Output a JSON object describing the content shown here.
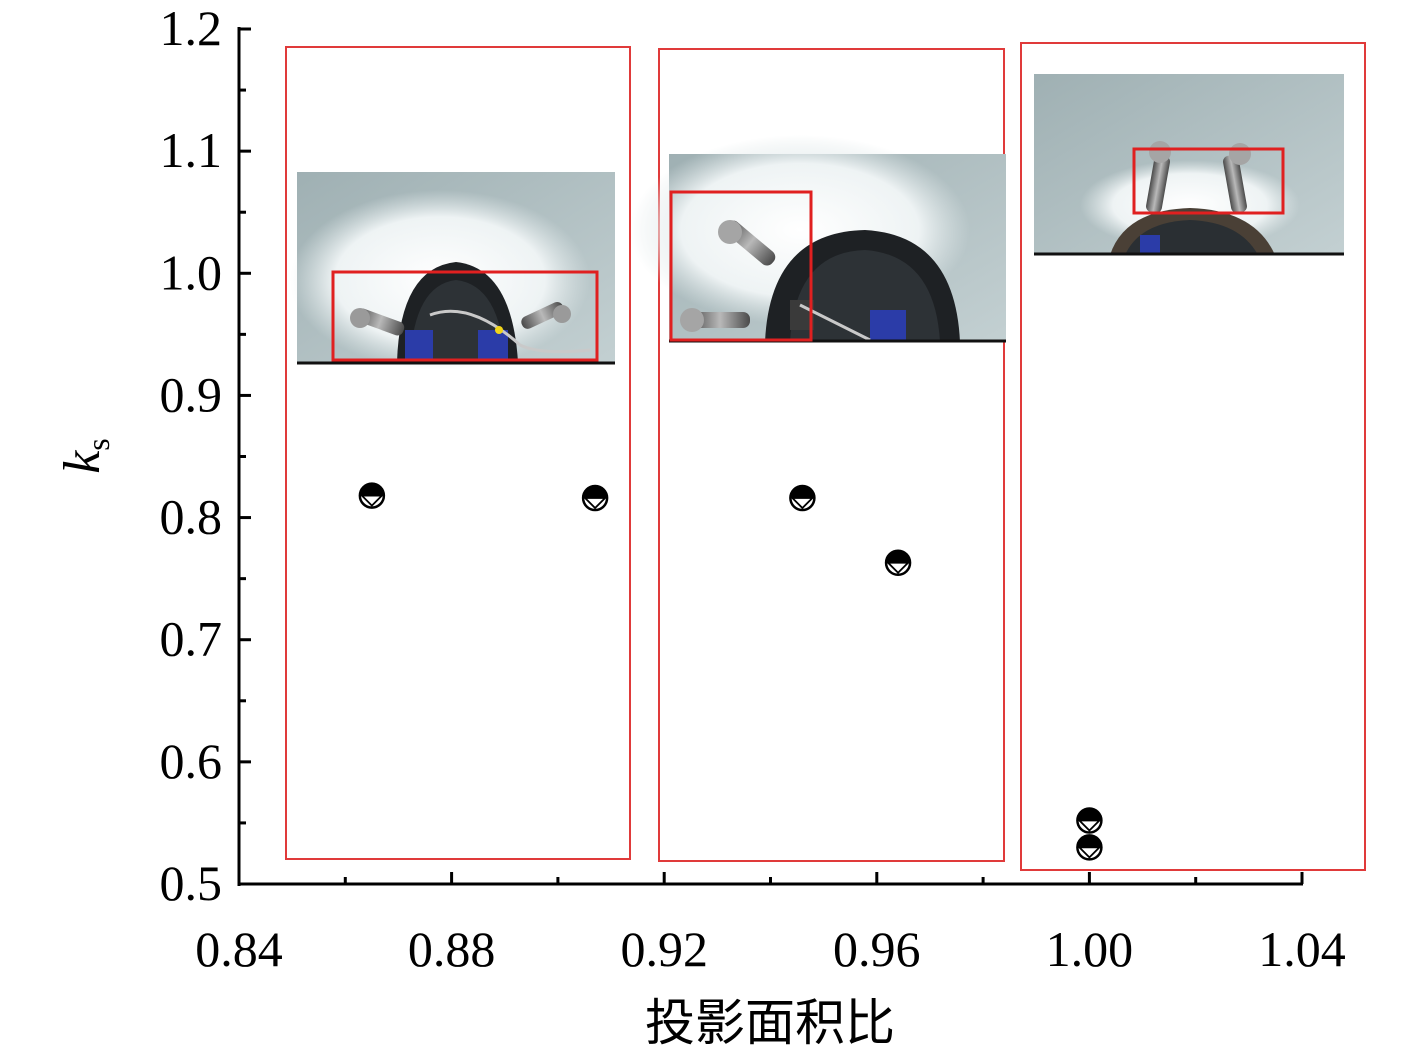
{
  "chart_data": {
    "type": "scatter",
    "xlabel": "投影面积比",
    "ylabel": {
      "main": "k",
      "sub": "s"
    },
    "xlim": [
      0.84,
      1.04
    ],
    "ylim": [
      0.5,
      1.2
    ],
    "xticks": [
      "0.84",
      "0.88",
      "0.92",
      "0.96",
      "1.00",
      "1.04"
    ],
    "yticks": [
      "0.5",
      "0.6",
      "0.7",
      "0.8",
      "0.9",
      "1.0",
      "1.1",
      "1.2"
    ],
    "points": [
      {
        "x": 0.865,
        "y": 0.818
      },
      {
        "x": 0.907,
        "y": 0.816
      },
      {
        "x": 0.946,
        "y": 0.816
      },
      {
        "x": 0.964,
        "y": 0.763
      },
      {
        "x": 1.0,
        "y": 0.552
      },
      {
        "x": 1.0,
        "y": 0.53
      }
    ],
    "grid": false,
    "groups": 3,
    "colors": {
      "marker": "#000000",
      "group_box": "#e03a3a",
      "photo_box": "#e02020",
      "axis": "#000000"
    }
  }
}
